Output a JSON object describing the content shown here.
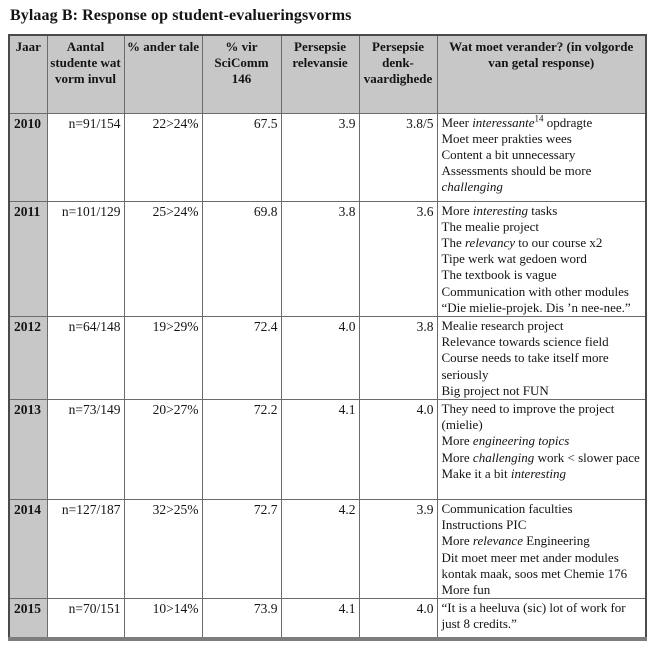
{
  "title": "Bylaag B: Response op student-evalueringsvorms",
  "colors": {
    "header_shade": "#c7c7c7",
    "grid_line": "#6b6b6b",
    "outer_border": "#4a4a4a",
    "bottom_border": "#7d7d7d"
  },
  "table": {
    "headers": [
      "Jaar",
      "Aantal studente wat vorm invul",
      "% ander tale",
      "% vir SciComm 146",
      "Persepsie relevansie",
      "Persepsie denk-vaardighede",
      "Wat moet verander? (in volgorde van getal response)"
    ],
    "rows": [
      {
        "year": "2010",
        "respondents": "n=91/154",
        "other_languages": "22>24%",
        "scicomm": "67.5",
        "relevance": "3.9",
        "thinking": "3.8/5",
        "feedback": [
          [
            {
              "t": "Meer "
            },
            {
              "t": "interessante",
              "i": true
            },
            {
              "t": "14",
              "sup": true
            },
            {
              "t": " opdragte"
            }
          ],
          [
            {
              "t": "Moet meer prakties wees"
            }
          ],
          [
            {
              "t": "Content a bit unnecessary"
            }
          ],
          [
            {
              "t": "Assessments should be more "
            },
            {
              "t": "challenging",
              "i": true
            }
          ]
        ]
      },
      {
        "year": "2011",
        "respondents": "n=101/129",
        "other_languages": "25>24%",
        "scicomm": "69.8",
        "relevance": "3.8",
        "thinking": "3.6",
        "feedback": [
          [
            {
              "t": "More "
            },
            {
              "t": "interesting",
              "i": true
            },
            {
              "t": " tasks"
            }
          ],
          [
            {
              "t": "The mealie project"
            }
          ],
          [
            {
              "t": "The "
            },
            {
              "t": "relevancy",
              "i": true
            },
            {
              "t": " to our course x2"
            }
          ],
          [
            {
              "t": "Tipe werk wat gedoen word"
            }
          ],
          [
            {
              "t": "The textbook is vague"
            }
          ],
          [
            {
              "t": "Communication with other modules"
            }
          ],
          [
            {
              "t": "“Die mielie-projek. Dis ’n nee-nee.”"
            }
          ]
        ]
      },
      {
        "year": "2012",
        "respondents": "n=64/148",
        "other_languages": "19>29%",
        "scicomm": "72.4",
        "relevance": "4.0",
        "thinking": "3.8",
        "feedback": [
          [
            {
              "t": "Mealie research project"
            }
          ],
          [
            {
              "t": "Relevance towards science field"
            }
          ],
          [
            {
              "t": "Course needs to take itself more seriously"
            }
          ],
          [
            {
              "t": "Big project not FUN"
            }
          ]
        ]
      },
      {
        "year": "2013",
        "respondents": "n=73/149",
        "other_languages": "20>27%",
        "scicomm": "72.2",
        "relevance": "4.1",
        "thinking": "4.0",
        "feedback": [
          [
            {
              "t": "They need to improve the project (mielie)"
            }
          ],
          [
            {
              "t": "More "
            },
            {
              "t": "engineering topics",
              "i": true
            }
          ],
          [
            {
              "t": "More "
            },
            {
              "t": "challenging",
              "i": true
            },
            {
              "t": " work < slower pace"
            }
          ],
          [
            {
              "t": "Make it a bit "
            },
            {
              "t": "interesting",
              "i": true
            }
          ]
        ]
      },
      {
        "year": "2014",
        "respondents": "n=127/187",
        "other_languages": "32>25%",
        "scicomm": "72.7",
        "relevance": "4.2",
        "thinking": "3.9",
        "feedback": [
          [
            {
              "t": "Communication faculties"
            }
          ],
          [
            {
              "t": "Instructions PIC"
            }
          ],
          [
            {
              "t": "More "
            },
            {
              "t": "relevance",
              "i": true
            },
            {
              "t": " Engineering"
            }
          ],
          [
            {
              "t": "Dit moet meer met ander modules kontak maak, soos met Chemie 176"
            }
          ],
          [
            {
              "t": "More fun"
            }
          ]
        ]
      },
      {
        "year": "2015",
        "respondents": "n=70/151",
        "other_languages": "10>14%",
        "scicomm": "73.9",
        "relevance": "4.1",
        "thinking": "4.0",
        "feedback": [
          [
            {
              "t": "“It is a heeluva (sic) lot of work for just 8 credits.”"
            }
          ]
        ]
      }
    ]
  }
}
